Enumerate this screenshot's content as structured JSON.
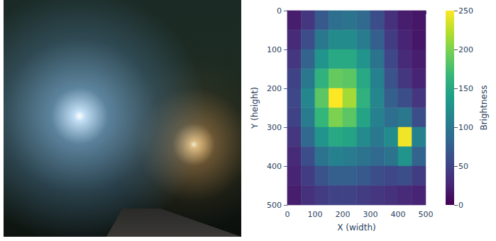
{
  "chart_data": {
    "type": "heatmap",
    "x_label": "X (width)",
    "y_label": "Y (height)",
    "colorbar_label": "Brightness",
    "x_bins": [
      0,
      50,
      100,
      150,
      200,
      250,
      300,
      350,
      400,
      450,
      500
    ],
    "y_bins": [
      0,
      50,
      100,
      150,
      200,
      250,
      300,
      350,
      400,
      450,
      500
    ],
    "cells": [
      [
        20,
        40,
        70,
        90,
        95,
        85,
        60,
        35,
        20,
        15
      ],
      [
        30,
        60,
        100,
        120,
        120,
        105,
        75,
        45,
        25,
        15
      ],
      [
        40,
        80,
        130,
        150,
        150,
        130,
        95,
        55,
        30,
        20
      ],
      [
        50,
        100,
        160,
        190,
        185,
        150,
        110,
        65,
        40,
        25
      ],
      [
        55,
        115,
        185,
        250,
        215,
        160,
        115,
        75,
        60,
        40
      ],
      [
        50,
        105,
        165,
        200,
        185,
        145,
        110,
        90,
        100,
        60
      ],
      [
        40,
        85,
        130,
        150,
        145,
        120,
        100,
        120,
        245,
        110
      ],
      [
        30,
        60,
        95,
        110,
        105,
        95,
        85,
        95,
        130,
        80
      ],
      [
        25,
        45,
        65,
        75,
        75,
        70,
        60,
        55,
        60,
        45
      ],
      [
        20,
        35,
        45,
        50,
        50,
        45,
        40,
        35,
        30,
        25
      ]
    ],
    "xlim": [
      0,
      500
    ],
    "ylim": [
      0,
      500
    ],
    "xticks": [
      0,
      100,
      200,
      300,
      400,
      500
    ],
    "yticks": [
      0,
      100,
      200,
      300,
      400,
      500
    ],
    "colorbar_range": [
      0,
      250
    ],
    "colorbar_ticks": [
      0,
      50,
      100,
      150,
      200,
      250
    ]
  }
}
